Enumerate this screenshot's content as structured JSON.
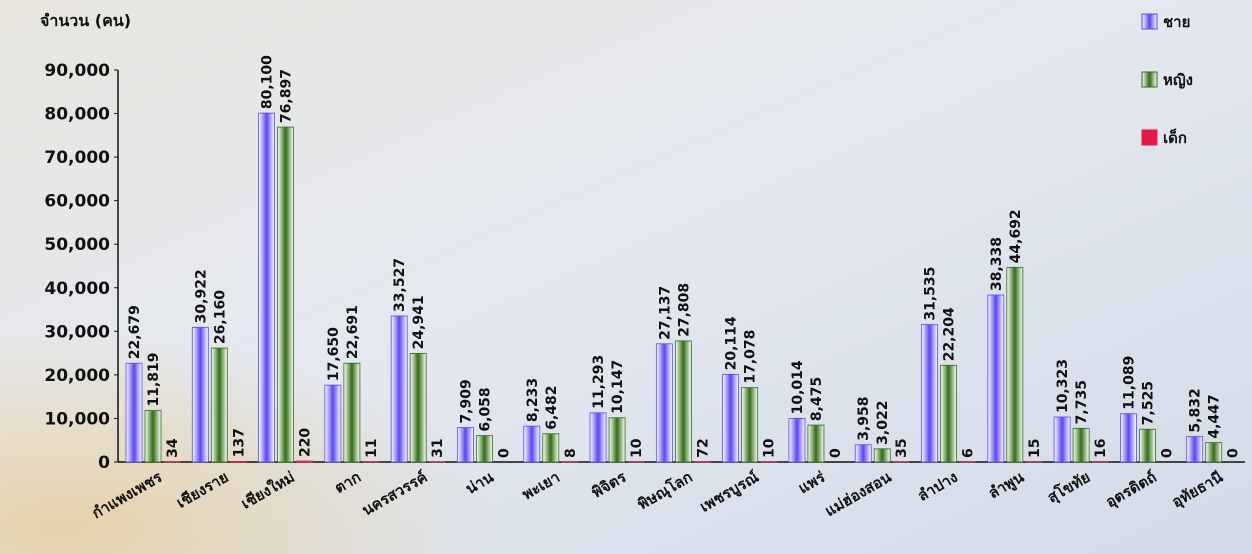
{
  "chart_data": {
    "type": "bar",
    "y_label": "จำนวน (คน)",
    "categories": [
      "กำแพงเพชร",
      "เชียงราย",
      "เชียงใหม่",
      "ตาก",
      "นครสวรรค์",
      "น่าน",
      "พะเยา",
      "พิจิตร",
      "พิษณุโลก",
      "เพชรบูรณ์",
      "แพร่",
      "แม่ฮ่องสอน",
      "ลำปาง",
      "ลำพูน",
      "สุโขทัย",
      "อุตรดิตถ์",
      "อุทัยธานี"
    ],
    "series": [
      {
        "name": "ชาย",
        "color": "#5a46f0",
        "values": [
          22679,
          30922,
          80100,
          17650,
          33527,
          7909,
          8233,
          11293,
          27137,
          20114,
          10014,
          3958,
          31535,
          38338,
          10323,
          11089,
          5832
        ],
        "value_labels": [
          "22,679",
          "30,922",
          "80,100",
          "17,650",
          "33,527",
          "7,909",
          "8,233",
          "11,293",
          "27,137",
          "20,114",
          "10,014",
          "3,958",
          "31,535",
          "38,338",
          "10,323",
          "11,089",
          "5,832"
        ]
      },
      {
        "name": "หญิง",
        "color": "#2f6e14",
        "values": [
          11819,
          26160,
          76897,
          22691,
          24941,
          6058,
          6482,
          10147,
          27808,
          17078,
          8475,
          3022,
          22204,
          44692,
          7735,
          7525,
          4447
        ],
        "value_labels": [
          "11,819",
          "26,160",
          "76,897",
          "22,691",
          "24,941",
          "6,058",
          "6,482",
          "10,147",
          "27,808",
          "17,078",
          "8,475",
          "3,022",
          "22,204",
          "44,692",
          "7,735",
          "7,525",
          "4,447"
        ]
      },
      {
        "name": "เด็ก",
        "color": "#e8174a",
        "values": [
          34,
          137,
          220,
          11,
          31,
          0,
          8,
          10,
          72,
          10,
          0,
          35,
          6,
          15,
          16,
          0,
          0
        ]
      }
    ],
    "ylim": [
      0,
      90000
    ],
    "yticks": [
      0,
      {
        "value": 10000,
        "label": "10,000"
      },
      {
        "value": 20000,
        "label": "20,000"
      },
      {
        "value": 30000,
        "label": "30,000"
      },
      {
        "value": 40000,
        "label": "40,000"
      },
      {
        "value": 50000,
        "label": "50,000"
      },
      {
        "value": 60000,
        "label": "60,000"
      },
      {
        "value": 70000,
        "label": "70,000"
      },
      {
        "value": 80000,
        "label": "80,000"
      },
      {
        "value": 90000,
        "label": "90,000"
      }
    ],
    "grid": false
  }
}
